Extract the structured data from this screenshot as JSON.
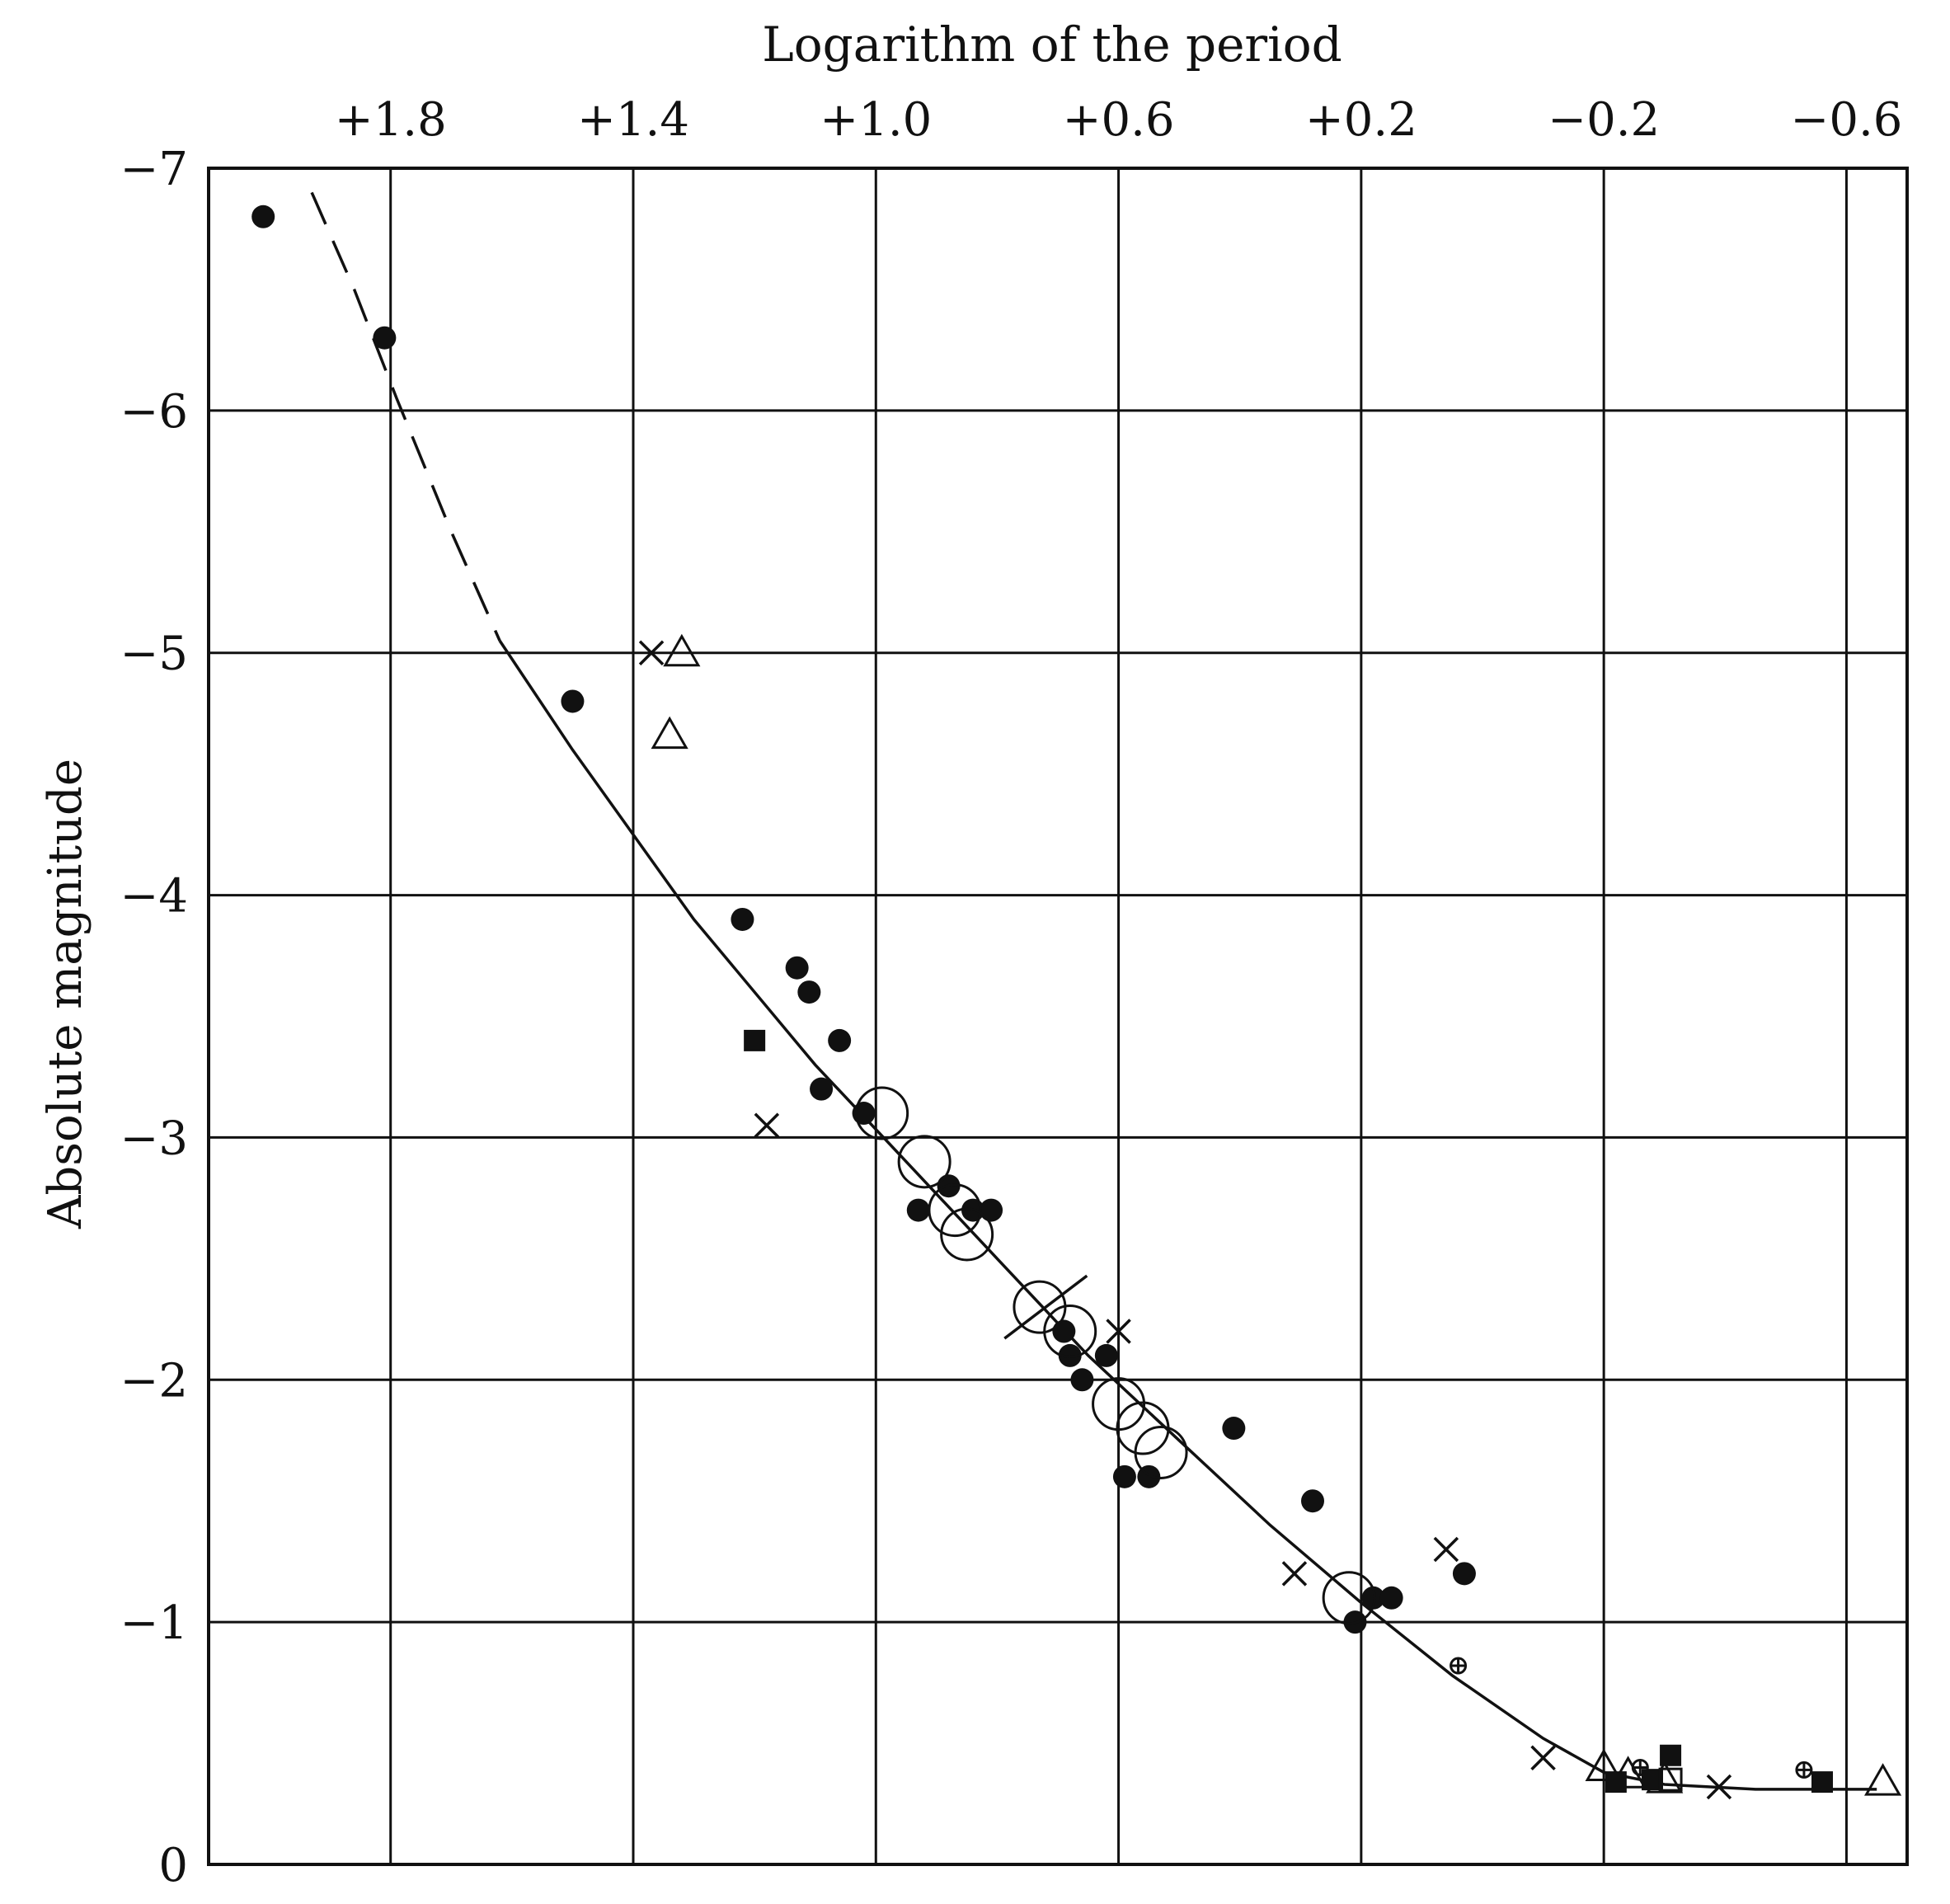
{
  "chart_data": {
    "type": "scatter",
    "title": "Logarithm of the period",
    "xlabel": "",
    "ylabel": "Absolute magnitude",
    "x_axis_position": "top",
    "x_reversed": true,
    "y_reversed": true,
    "xlim": [
      2.1,
      -0.7
    ],
    "ylim": [
      0,
      -7.0
    ],
    "grid": true,
    "x_ticks": [
      {
        "value": 1.8,
        "label": "+1.8"
      },
      {
        "value": 1.4,
        "label": "+1.4"
      },
      {
        "value": 1.0,
        "label": "+1.0"
      },
      {
        "value": 0.6,
        "label": "+0.6"
      },
      {
        "value": 0.2,
        "label": "+0.2"
      },
      {
        "value": -0.2,
        "label": "−0.2"
      },
      {
        "value": -0.6,
        "label": "−0.6"
      }
    ],
    "y_ticks": [
      {
        "value": -7,
        "label": "−7"
      },
      {
        "value": -6,
        "label": "−6"
      },
      {
        "value": -5,
        "label": "−5"
      },
      {
        "value": -4,
        "label": "−4"
      },
      {
        "value": -3,
        "label": "−3"
      },
      {
        "value": -2,
        "label": "−2"
      },
      {
        "value": -1,
        "label": "−1"
      },
      {
        "value": 0,
        "label": "0"
      }
    ],
    "curve_dashed": [
      [
        1.93,
        -6.9
      ],
      [
        1.86,
        -6.5
      ],
      [
        1.79,
        -6.05
      ],
      [
        1.7,
        -5.5
      ],
      [
        1.62,
        -5.05
      ]
    ],
    "curve_solid": [
      [
        1.62,
        -5.05
      ],
      [
        1.5,
        -4.6
      ],
      [
        1.3,
        -3.9
      ],
      [
        1.1,
        -3.3
      ],
      [
        0.95,
        -2.9
      ],
      [
        0.8,
        -2.5
      ],
      [
        0.65,
        -2.1
      ],
      [
        0.5,
        -1.75
      ],
      [
        0.35,
        -1.4
      ],
      [
        0.2,
        -1.08
      ],
      [
        0.05,
        -0.78
      ],
      [
        -0.1,
        -0.52
      ],
      [
        -0.2,
        -0.38
      ],
      [
        -0.3,
        -0.33
      ],
      [
        -0.45,
        -0.31
      ],
      [
        -0.65,
        -0.31
      ]
    ],
    "series": [
      {
        "marker": "filled-circle",
        "points": [
          [
            2.01,
            -6.8
          ],
          [
            1.81,
            -6.3
          ],
          [
            1.5,
            -4.8
          ],
          [
            1.22,
            -3.9
          ],
          [
            1.13,
            -3.7
          ],
          [
            1.11,
            -3.6
          ],
          [
            1.09,
            -3.2
          ],
          [
            1.06,
            -3.4
          ],
          [
            1.02,
            -3.1
          ],
          [
            0.93,
            -2.7
          ],
          [
            0.88,
            -2.8
          ],
          [
            0.84,
            -2.7
          ],
          [
            0.81,
            -2.7
          ],
          [
            0.69,
            -2.2
          ],
          [
            0.68,
            -2.1
          ],
          [
            0.66,
            -2.0
          ],
          [
            0.62,
            -2.1
          ],
          [
            0.59,
            -1.6
          ],
          [
            0.55,
            -1.6
          ],
          [
            0.41,
            -1.8
          ],
          [
            0.28,
            -1.5
          ],
          [
            0.21,
            -1.0
          ],
          [
            0.18,
            -1.1
          ],
          [
            0.15,
            -1.1
          ],
          [
            0.03,
            -1.2
          ]
        ]
      },
      {
        "marker": "open-circle",
        "points": [
          [
            0.99,
            -3.1
          ],
          [
            0.92,
            -2.9
          ],
          [
            0.87,
            -2.7
          ],
          [
            0.85,
            -2.6
          ],
          [
            0.73,
            -2.3
          ],
          [
            0.68,
            -2.2
          ],
          [
            0.6,
            -1.9
          ],
          [
            0.56,
            -1.8
          ],
          [
            0.53,
            -1.7
          ],
          [
            0.22,
            -1.1
          ]
        ]
      },
      {
        "marker": "cross",
        "points": [
          [
            1.37,
            -5.0
          ],
          [
            1.18,
            -3.05
          ],
          [
            0.6,
            -2.2
          ],
          [
            0.31,
            -1.2
          ],
          [
            0.06,
            -1.3
          ],
          [
            -0.1,
            -0.44
          ],
          [
            -0.39,
            -0.32
          ]
        ]
      },
      {
        "marker": "open-triangle",
        "points": [
          [
            1.32,
            -5.0
          ],
          [
            1.34,
            -4.66
          ],
          [
            -0.2,
            -0.4
          ],
          [
            -0.24,
            -0.37
          ],
          [
            -0.3,
            -0.35
          ],
          [
            -0.66,
            -0.34
          ]
        ]
      },
      {
        "marker": "filled-square",
        "points": [
          [
            1.2,
            -3.4
          ],
          [
            -0.22,
            -0.34
          ],
          [
            -0.28,
            -0.35
          ],
          [
            -0.31,
            -0.45
          ],
          [
            -0.56,
            -0.34
          ]
        ]
      },
      {
        "marker": "open-square",
        "points": [
          [
            -0.31,
            -0.35
          ]
        ]
      },
      {
        "marker": "circle-plus",
        "points": [
          [
            0.04,
            -0.82
          ],
          [
            -0.53,
            -0.39
          ],
          [
            -0.26,
            -0.4
          ]
        ]
      }
    ]
  }
}
